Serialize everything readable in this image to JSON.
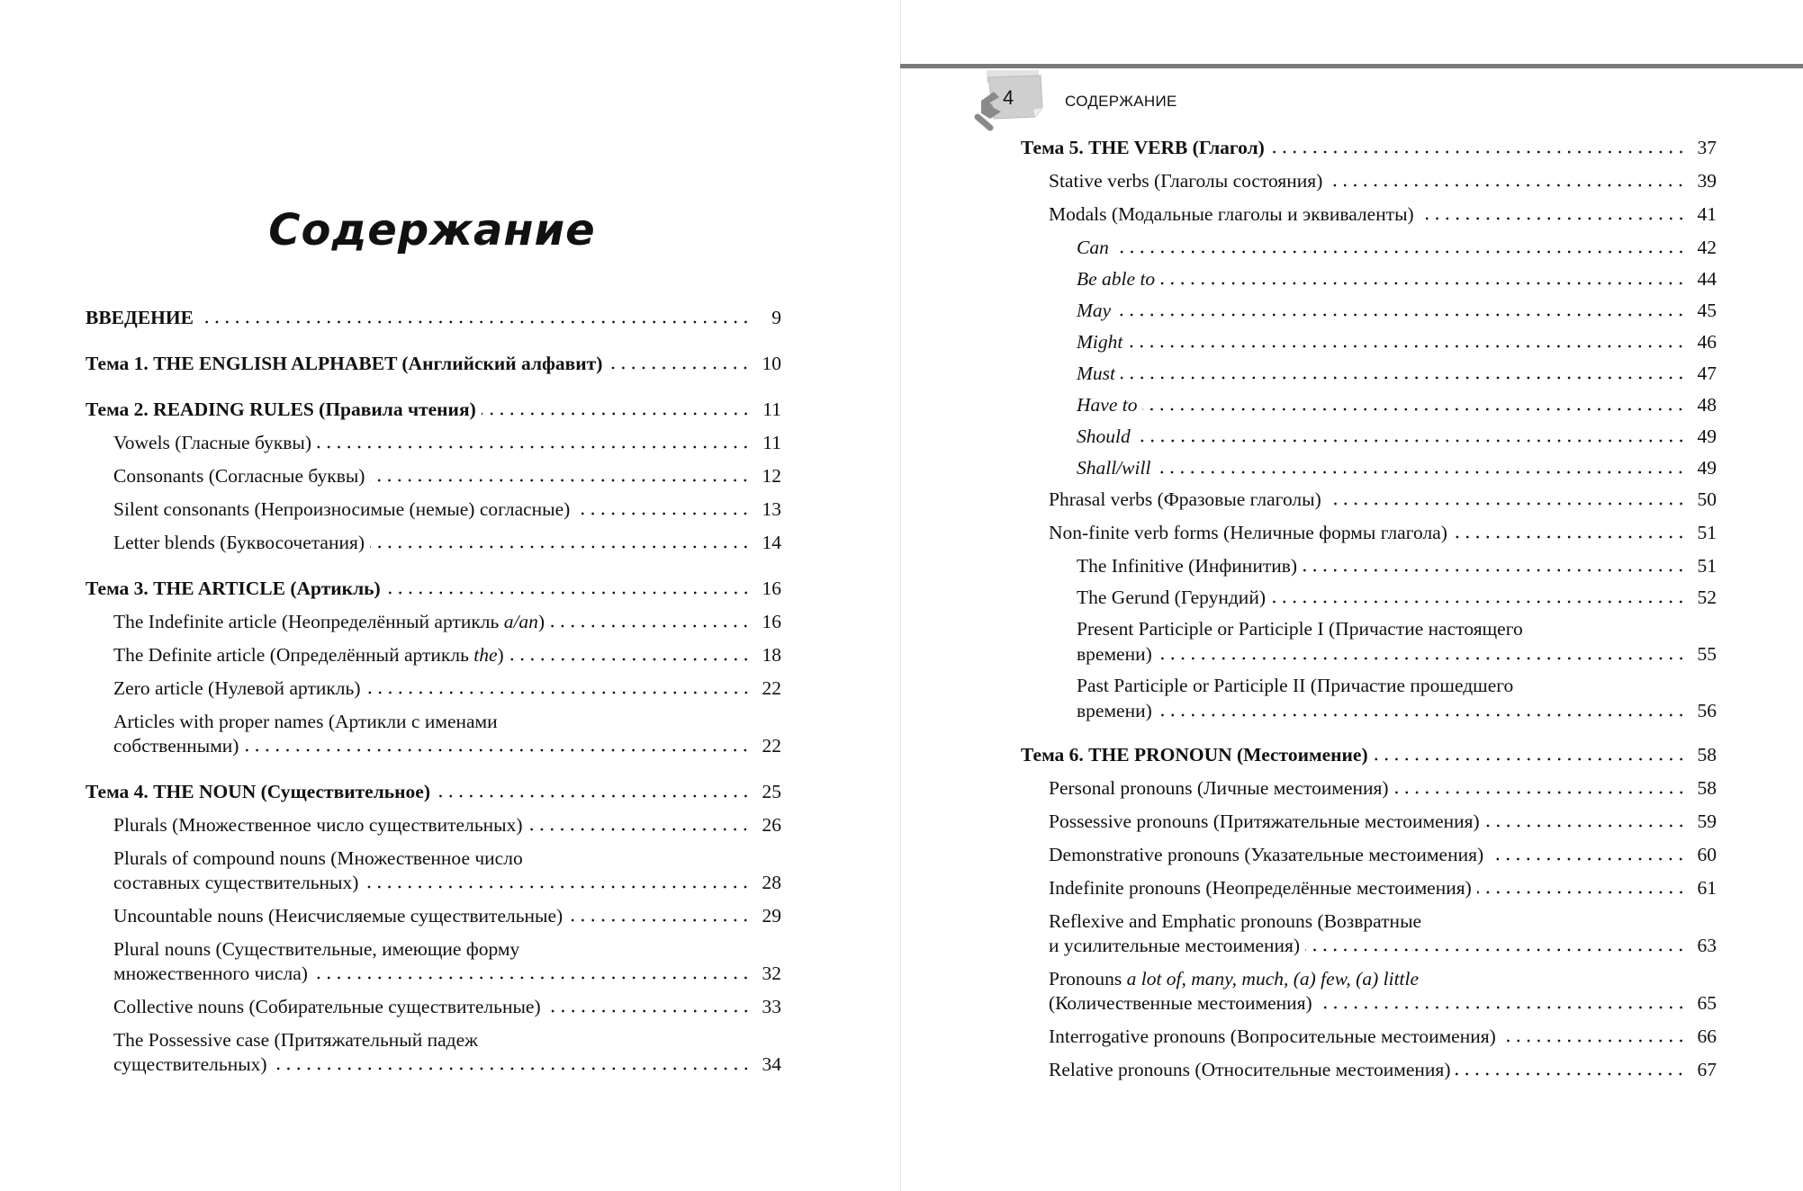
{
  "left_page": {
    "title": "Содержание",
    "sections": [
      {
        "entries": [
          {
            "level": 1,
            "lines": [
              "ВВЕДЕНИЕ"
            ],
            "page": "9"
          }
        ]
      },
      {
        "entries": [
          {
            "level": 1,
            "lines": [
              "Тема 1. THE ENGLISH ALPHABET (Английский алфавит)"
            ],
            "page": "10"
          }
        ]
      },
      {
        "entries": [
          {
            "level": 1,
            "lines": [
              "Тема 2. READING RULES (Правила чтения)"
            ],
            "page": "11"
          },
          {
            "level": 2,
            "lines": [
              "Vowels (Гласные буквы)"
            ],
            "page": "11"
          },
          {
            "level": 2,
            "lines": [
              "Consonants (Согласные буквы)"
            ],
            "page": "12"
          },
          {
            "level": 2,
            "lines": [
              "Silent consonants (Непроизносимые (немые) согласные)"
            ],
            "page": "13"
          },
          {
            "level": 2,
            "lines": [
              "Letter blends (Буквосочетания)"
            ],
            "page": "14"
          }
        ]
      },
      {
        "entries": [
          {
            "level": 1,
            "lines": [
              "Тема 3. THE ARTICLE (Артикль)"
            ],
            "page": "16"
          },
          {
            "level": 2,
            "lines": [
              [
                {
                  "t": "The Indefinite article (Неопределённый артикль "
                },
                {
                  "t": "a/an",
                  "i": true
                },
                {
                  "t": ")"
                }
              ]
            ],
            "page": "16"
          },
          {
            "level": 2,
            "lines": [
              [
                {
                  "t": "The Definite article (Определённый артикль "
                },
                {
                  "t": "the",
                  "i": true
                },
                {
                  "t": ")"
                }
              ]
            ],
            "page": "18"
          },
          {
            "level": 2,
            "lines": [
              "Zero article (Нулевой артикль)"
            ],
            "page": "22"
          },
          {
            "level": 2,
            "lines": [
              "Articles with proper names (Артикли с именами",
              "собственными)"
            ],
            "page": "22"
          }
        ]
      },
      {
        "entries": [
          {
            "level": 1,
            "lines": [
              "Тема 4. THE NOUN (Существительное)"
            ],
            "page": "25"
          },
          {
            "level": 2,
            "lines": [
              "Plurals (Множественное число существительных)"
            ],
            "page": "26"
          },
          {
            "level": 2,
            "lines": [
              "Plurals of compound nouns (Множественное число",
              "составных существительных)"
            ],
            "page": "28"
          },
          {
            "level": 2,
            "lines": [
              "Uncountable nouns (Неисчисляемые существительные)"
            ],
            "page": "29"
          },
          {
            "level": 2,
            "lines": [
              "Plural nouns (Существительные, имеющие форму",
              "множественного числа)"
            ],
            "page": "32"
          },
          {
            "level": 2,
            "lines": [
              "Collective nouns (Собирательные существительные)"
            ],
            "page": "33"
          },
          {
            "level": 2,
            "lines": [
              "The Possessive case (Притяжательный падеж",
              "существительных)"
            ],
            "page": "34"
          }
        ]
      }
    ]
  },
  "right_page": {
    "page_number": "4",
    "running_head": "СОДЕРЖАНИЕ",
    "sections": [
      {
        "entries": [
          {
            "level": 1,
            "lines": [
              "Тема 5. THE VERB (Глагол)"
            ],
            "page": "37"
          },
          {
            "level": 2,
            "lines": [
              "Stative verbs (Глаголы состояния)"
            ],
            "page": "39"
          },
          {
            "level": 2,
            "lines": [
              "Modals (Модальные глаголы и эквиваленты)"
            ],
            "page": "41"
          },
          {
            "level": 3,
            "italic": true,
            "lines": [
              "Can"
            ],
            "page": "42"
          },
          {
            "level": 3,
            "italic": true,
            "lines": [
              "Be able to"
            ],
            "page": "44"
          },
          {
            "level": 3,
            "italic": true,
            "lines": [
              "May"
            ],
            "page": "45"
          },
          {
            "level": 3,
            "italic": true,
            "lines": [
              "Might"
            ],
            "page": "46"
          },
          {
            "level": 3,
            "italic": true,
            "lines": [
              "Must"
            ],
            "page": "47"
          },
          {
            "level": 3,
            "italic": true,
            "lines": [
              "Have to"
            ],
            "page": "48"
          },
          {
            "level": 3,
            "italic": true,
            "lines": [
              "Should"
            ],
            "page": "49"
          },
          {
            "level": 3,
            "italic": true,
            "lines": [
              "Shall/will"
            ],
            "page": "49"
          },
          {
            "level": 2,
            "lines": [
              "Phrasal verbs (Фразовые глаголы)"
            ],
            "page": "50"
          },
          {
            "level": 2,
            "lines": [
              "Non-finite verb forms (Неличные формы глагола)"
            ],
            "page": "51"
          },
          {
            "level": 3,
            "lines": [
              "The Infinitive (Инфинитив)"
            ],
            "page": "51"
          },
          {
            "level": 3,
            "lines": [
              "The Gerund (Герундий)"
            ],
            "page": "52"
          },
          {
            "level": 3,
            "lines": [
              "Present Participle or Participle I (Причастие настоящего",
              "времени)"
            ],
            "page": "55"
          },
          {
            "level": 3,
            "lines": [
              "Past Participle or Participle II (Причастие прошедшего",
              "времени)"
            ],
            "page": "56"
          }
        ]
      },
      {
        "entries": [
          {
            "level": 1,
            "lines": [
              "Тема 6. THE PRONOUN (Местоимение)"
            ],
            "page": "58"
          },
          {
            "level": 2,
            "lines": [
              "Personal pronouns (Личные местоимения)"
            ],
            "page": "58"
          },
          {
            "level": 2,
            "lines": [
              "Possessive pronouns (Притяжательные местоимения)"
            ],
            "page": "59"
          },
          {
            "level": 2,
            "lines": [
              "Demonstrative pronouns (Указательные местоимения)"
            ],
            "page": "60"
          },
          {
            "level": 2,
            "lines": [
              "Indefinite pronouns (Неопределённые местоимения)"
            ],
            "page": "61"
          },
          {
            "level": 2,
            "lines": [
              "Reflexive and Emphatic pronouns (Возвратные",
              "и усилительные местоимения)"
            ],
            "page": "63"
          },
          {
            "level": 2,
            "lines": [
              [
                {
                  "t": "Pronouns "
                },
                {
                  "t": "a lot of, many, much, (a) few, (a) little",
                  "i": true
                }
              ],
              "(Количественные местоимения)"
            ],
            "page": "65"
          },
          {
            "level": 2,
            "lines": [
              "Interrogative pronouns (Вопросительные местоимения)"
            ],
            "page": "66"
          },
          {
            "level": 2,
            "lines": [
              "Relative pronouns (Относительные местоимения)"
            ],
            "page": "67"
          }
        ]
      }
    ]
  },
  "colors": {
    "rule": "#7a7a7a",
    "badge": "#c9c9c9",
    "hand": "#8a8a8a"
  },
  "icons": {
    "page_badge": "sticky-note-with-hand-icon"
  }
}
